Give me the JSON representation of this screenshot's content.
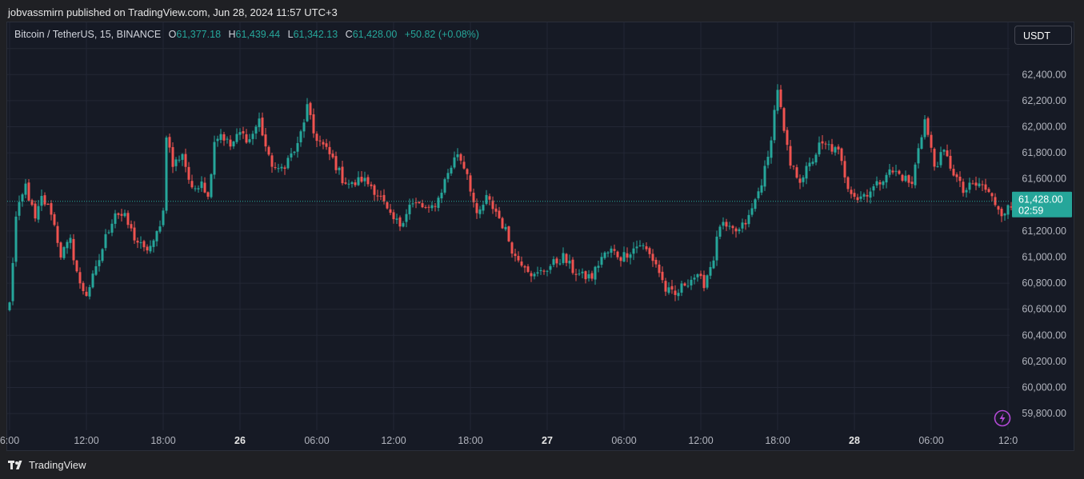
{
  "header": {
    "published_line": "jobvassmirn published on TradingView.com, Jun 28, 2024 11:57 UTC+3"
  },
  "legend": {
    "symbol": "Bitcoin / TetherUS, 15, BINANCE",
    "o_label": "O",
    "o_value": "61,377.18",
    "h_label": "H",
    "h_value": "61,439.44",
    "l_label": "L",
    "l_value": "61,342.13",
    "c_label": "C",
    "c_value": "61,428.00",
    "change": "+50.82 (+0.08%)"
  },
  "currency_button": {
    "label": "USDT"
  },
  "price_tag": {
    "price": "61,428.00",
    "countdown": "02:59"
  },
  "footer": {
    "brand": "TradingView"
  },
  "colors": {
    "up": "#26a69a",
    "down": "#ef5350",
    "background": "#161a25",
    "grid": "#232735",
    "axis_text": "#b2b5be",
    "alert_icon": "#b349d6"
  },
  "icons": {
    "alert": "lightning-icon",
    "logo": "tradingview-logo-icon"
  },
  "chart_data": {
    "type": "candlestick",
    "title": "",
    "interval_minutes": 15,
    "ylim": [
      59760,
      62460
    ],
    "y_ticks": [
      "62,400.00",
      "62,200.00",
      "62,000.00",
      "61,800.00",
      "61,600.00",
      "61,400.00",
      "61,200.00",
      "61,000.00",
      "60,800.00",
      "60,600.00",
      "60,400.00",
      "60,200.00",
      "60,000.00",
      "59,800.00"
    ],
    "y_tick_values": [
      62400,
      62200,
      62000,
      61800,
      61600,
      61400,
      61200,
      61000,
      60800,
      60600,
      60400,
      60200,
      60000,
      59800
    ],
    "x_ticks": [
      {
        "label": "6:00",
        "index": 0,
        "bold": false
      },
      {
        "label": "12:00",
        "index": 24,
        "bold": false
      },
      {
        "label": "18:00",
        "index": 48,
        "bold": false
      },
      {
        "label": "26",
        "index": 72,
        "bold": true
      },
      {
        "label": "06:00",
        "index": 96,
        "bold": false
      },
      {
        "label": "12:00",
        "index": 120,
        "bold": false
      },
      {
        "label": "18:00",
        "index": 144,
        "bold": false
      },
      {
        "label": "27",
        "index": 168,
        "bold": true
      },
      {
        "label": "06:00",
        "index": 192,
        "bold": false
      },
      {
        "label": "12:00",
        "index": 216,
        "bold": false
      },
      {
        "label": "18:00",
        "index": 240,
        "bold": false
      },
      {
        "label": "28",
        "index": 264,
        "bold": true
      },
      {
        "label": "06:00",
        "index": 288,
        "bold": false
      },
      {
        "label": "12:0",
        "index": 312,
        "bold": false
      }
    ],
    "last_price": 61428,
    "anchors": [
      [
        0,
        60640
      ],
      [
        2,
        61300
      ],
      [
        5,
        61550
      ],
      [
        8,
        61280
      ],
      [
        10,
        61450
      ],
      [
        13,
        61350
      ],
      [
        16,
        61020
      ],
      [
        19,
        61120
      ],
      [
        22,
        60780
      ],
      [
        24,
        60720
      ],
      [
        27,
        60900
      ],
      [
        30,
        61150
      ],
      [
        33,
        61350
      ],
      [
        36,
        61300
      ],
      [
        39,
        61150
      ],
      [
        42,
        61050
      ],
      [
        45,
        61100
      ],
      [
        48,
        61350
      ],
      [
        49,
        61950
      ],
      [
        51,
        61700
      ],
      [
        54,
        61800
      ],
      [
        57,
        61500
      ],
      [
        60,
        61600
      ],
      [
        62,
        61450
      ],
      [
        64,
        61900
      ],
      [
        66,
        61950
      ],
      [
        69,
        61850
      ],
      [
        72,
        61950
      ],
      [
        75,
        61900
      ],
      [
        78,
        62050
      ],
      [
        81,
        61750
      ],
      [
        84,
        61650
      ],
      [
        87,
        61750
      ],
      [
        90,
        61850
      ],
      [
        93,
        62150
      ],
      [
        95,
        61950
      ],
      [
        98,
        61850
      ],
      [
        101,
        61750
      ],
      [
        104,
        61600
      ],
      [
        107,
        61550
      ],
      [
        110,
        61600
      ],
      [
        113,
        61550
      ],
      [
        116,
        61450
      ],
      [
        119,
        61300
      ],
      [
        122,
        61250
      ],
      [
        125,
        61400
      ],
      [
        128,
        61400
      ],
      [
        131,
        61350
      ],
      [
        134,
        61450
      ],
      [
        137,
        61650
      ],
      [
        140,
        61800
      ],
      [
        143,
        61650
      ],
      [
        146,
        61300
      ],
      [
        149,
        61450
      ],
      [
        152,
        61350
      ],
      [
        155,
        61200
      ],
      [
        158,
        61000
      ],
      [
        161,
        60950
      ],
      [
        164,
        60850
      ],
      [
        167,
        60900
      ],
      [
        170,
        60950
      ],
      [
        173,
        61000
      ],
      [
        176,
        60900
      ],
      [
        179,
        60850
      ],
      [
        182,
        60850
      ],
      [
        185,
        61000
      ],
      [
        188,
        61050
      ],
      [
        191,
        61000
      ],
      [
        194,
        61050
      ],
      [
        197,
        61100
      ],
      [
        199,
        61050
      ],
      [
        202,
        60950
      ],
      [
        205,
        60750
      ],
      [
        208,
        60700
      ],
      [
        211,
        60800
      ],
      [
        214,
        60850
      ],
      [
        217,
        60800
      ],
      [
        220,
        61000
      ],
      [
        222,
        61250
      ],
      [
        225,
        61200
      ],
      [
        228,
        61200
      ],
      [
        231,
        61300
      ],
      [
        234,
        61500
      ],
      [
        237,
        61750
      ],
      [
        240,
        62300
      ],
      [
        242,
        61950
      ],
      [
        244,
        61700
      ],
      [
        247,
        61600
      ],
      [
        250,
        61700
      ],
      [
        253,
        61850
      ],
      [
        256,
        61850
      ],
      [
        259,
        61800
      ],
      [
        262,
        61550
      ],
      [
        265,
        61450
      ],
      [
        268,
        61500
      ],
      [
        271,
        61550
      ],
      [
        274,
        61650
      ],
      [
        277,
        61650
      ],
      [
        280,
        61600
      ],
      [
        282,
        61550
      ],
      [
        284,
        61850
      ],
      [
        286,
        62050
      ],
      [
        289,
        61700
      ],
      [
        292,
        61800
      ],
      [
        295,
        61650
      ],
      [
        298,
        61500
      ],
      [
        301,
        61550
      ],
      [
        304,
        61550
      ],
      [
        307,
        61450
      ],
      [
        310,
        61350
      ],
      [
        313,
        61380
      ],
      [
        314,
        61428
      ]
    ]
  }
}
